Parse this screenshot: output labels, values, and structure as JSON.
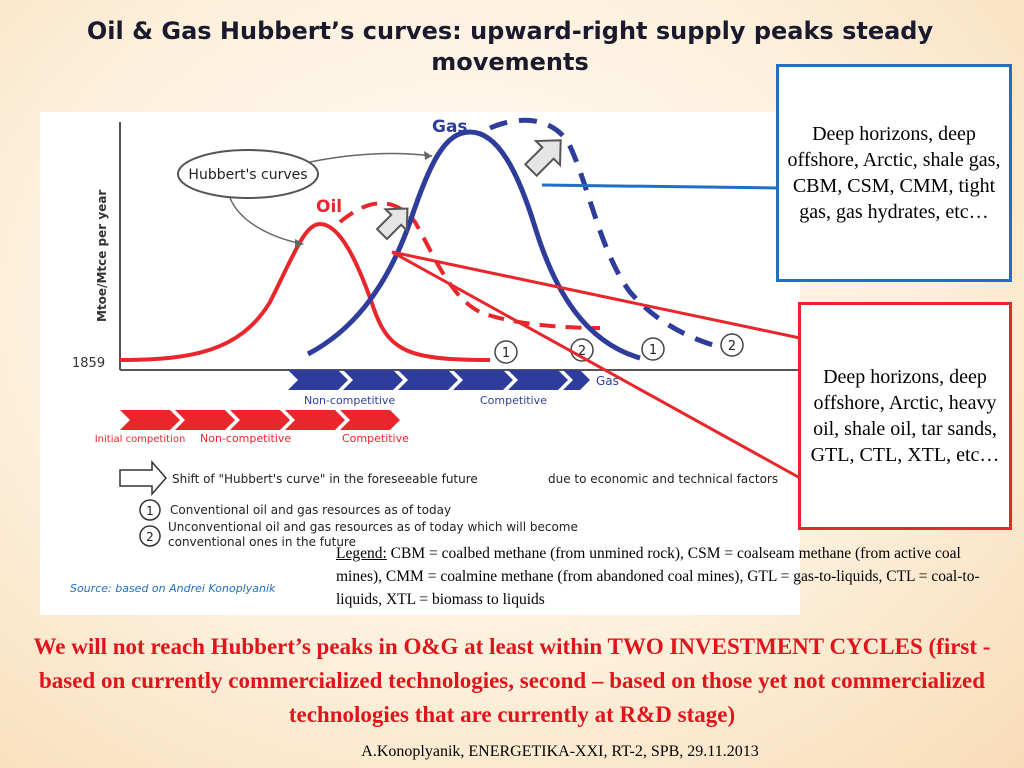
{
  "slide": {
    "title": "Oil & Gas Hubbert’s curves: upward-right supply peaks steady movements",
    "callout_gas": "Deep horizons, deep offshore, Arctic, shale gas, CBM, CSM, CMM, tight gas, gas hydrates, etc…",
    "callout_oil": "Deep horizons, deep offshore, Arctic, heavy oil, shale oil, tar sands, GTL, CTL, XTL, etc…",
    "legend_label": "Legend:",
    "legend_text": " CBM = coalbed methane (from unmined rock), CSM = coalseam methane (from active coal mines), CMM = coalmine methane (from abandoned coal mines), GTL = gas-to-liquids, CTL = coal-to-liquids, XTL = biomass to liquids",
    "conclusion": "We will not reach Hubbert’s peaks in O&G at least within TWO INVESTMENT CYCLES (first - based on currently commercialized technologies,  second – based on those yet not commercialized technologies that are currently at R&D stage)",
    "footer": "A.Konoplyanik, ENERGETIKA-XXI, RT-2, SPB, 29.11.2013"
  },
  "figure": {
    "colors": {
      "oil": "#e8262b",
      "gas": "#2e3d9c",
      "blue_callout": "#1f6fc2"
    },
    "hubbert_label": "Hubbert's curves",
    "gas_label": "Gas",
    "oil_label": "Oil",
    "y_axis_label": "Mtoe/Mtce per year",
    "start_year": "1859",
    "circle_1": "1",
    "circle_2": "2",
    "gas_arrow_label": "Gas",
    "gas_noncompetitive": "Non-competitive",
    "gas_competitive": "Competitive",
    "oil_initial": "Initial competition",
    "oil_noncompetitive": "Non-competitive",
    "oil_competitive": "Competitive",
    "shift_text": "Shift of \"Hubbert's curve\" in the foreseeable future",
    "shift_reason": "due to economic and technical factors",
    "note_1": "Conventional oil and gas resources as of today",
    "note_2": "Unconventional oil and gas resources as of today which will become conventional ones in the future",
    "source": "Source:   based on Andrei Konoplyanik"
  }
}
